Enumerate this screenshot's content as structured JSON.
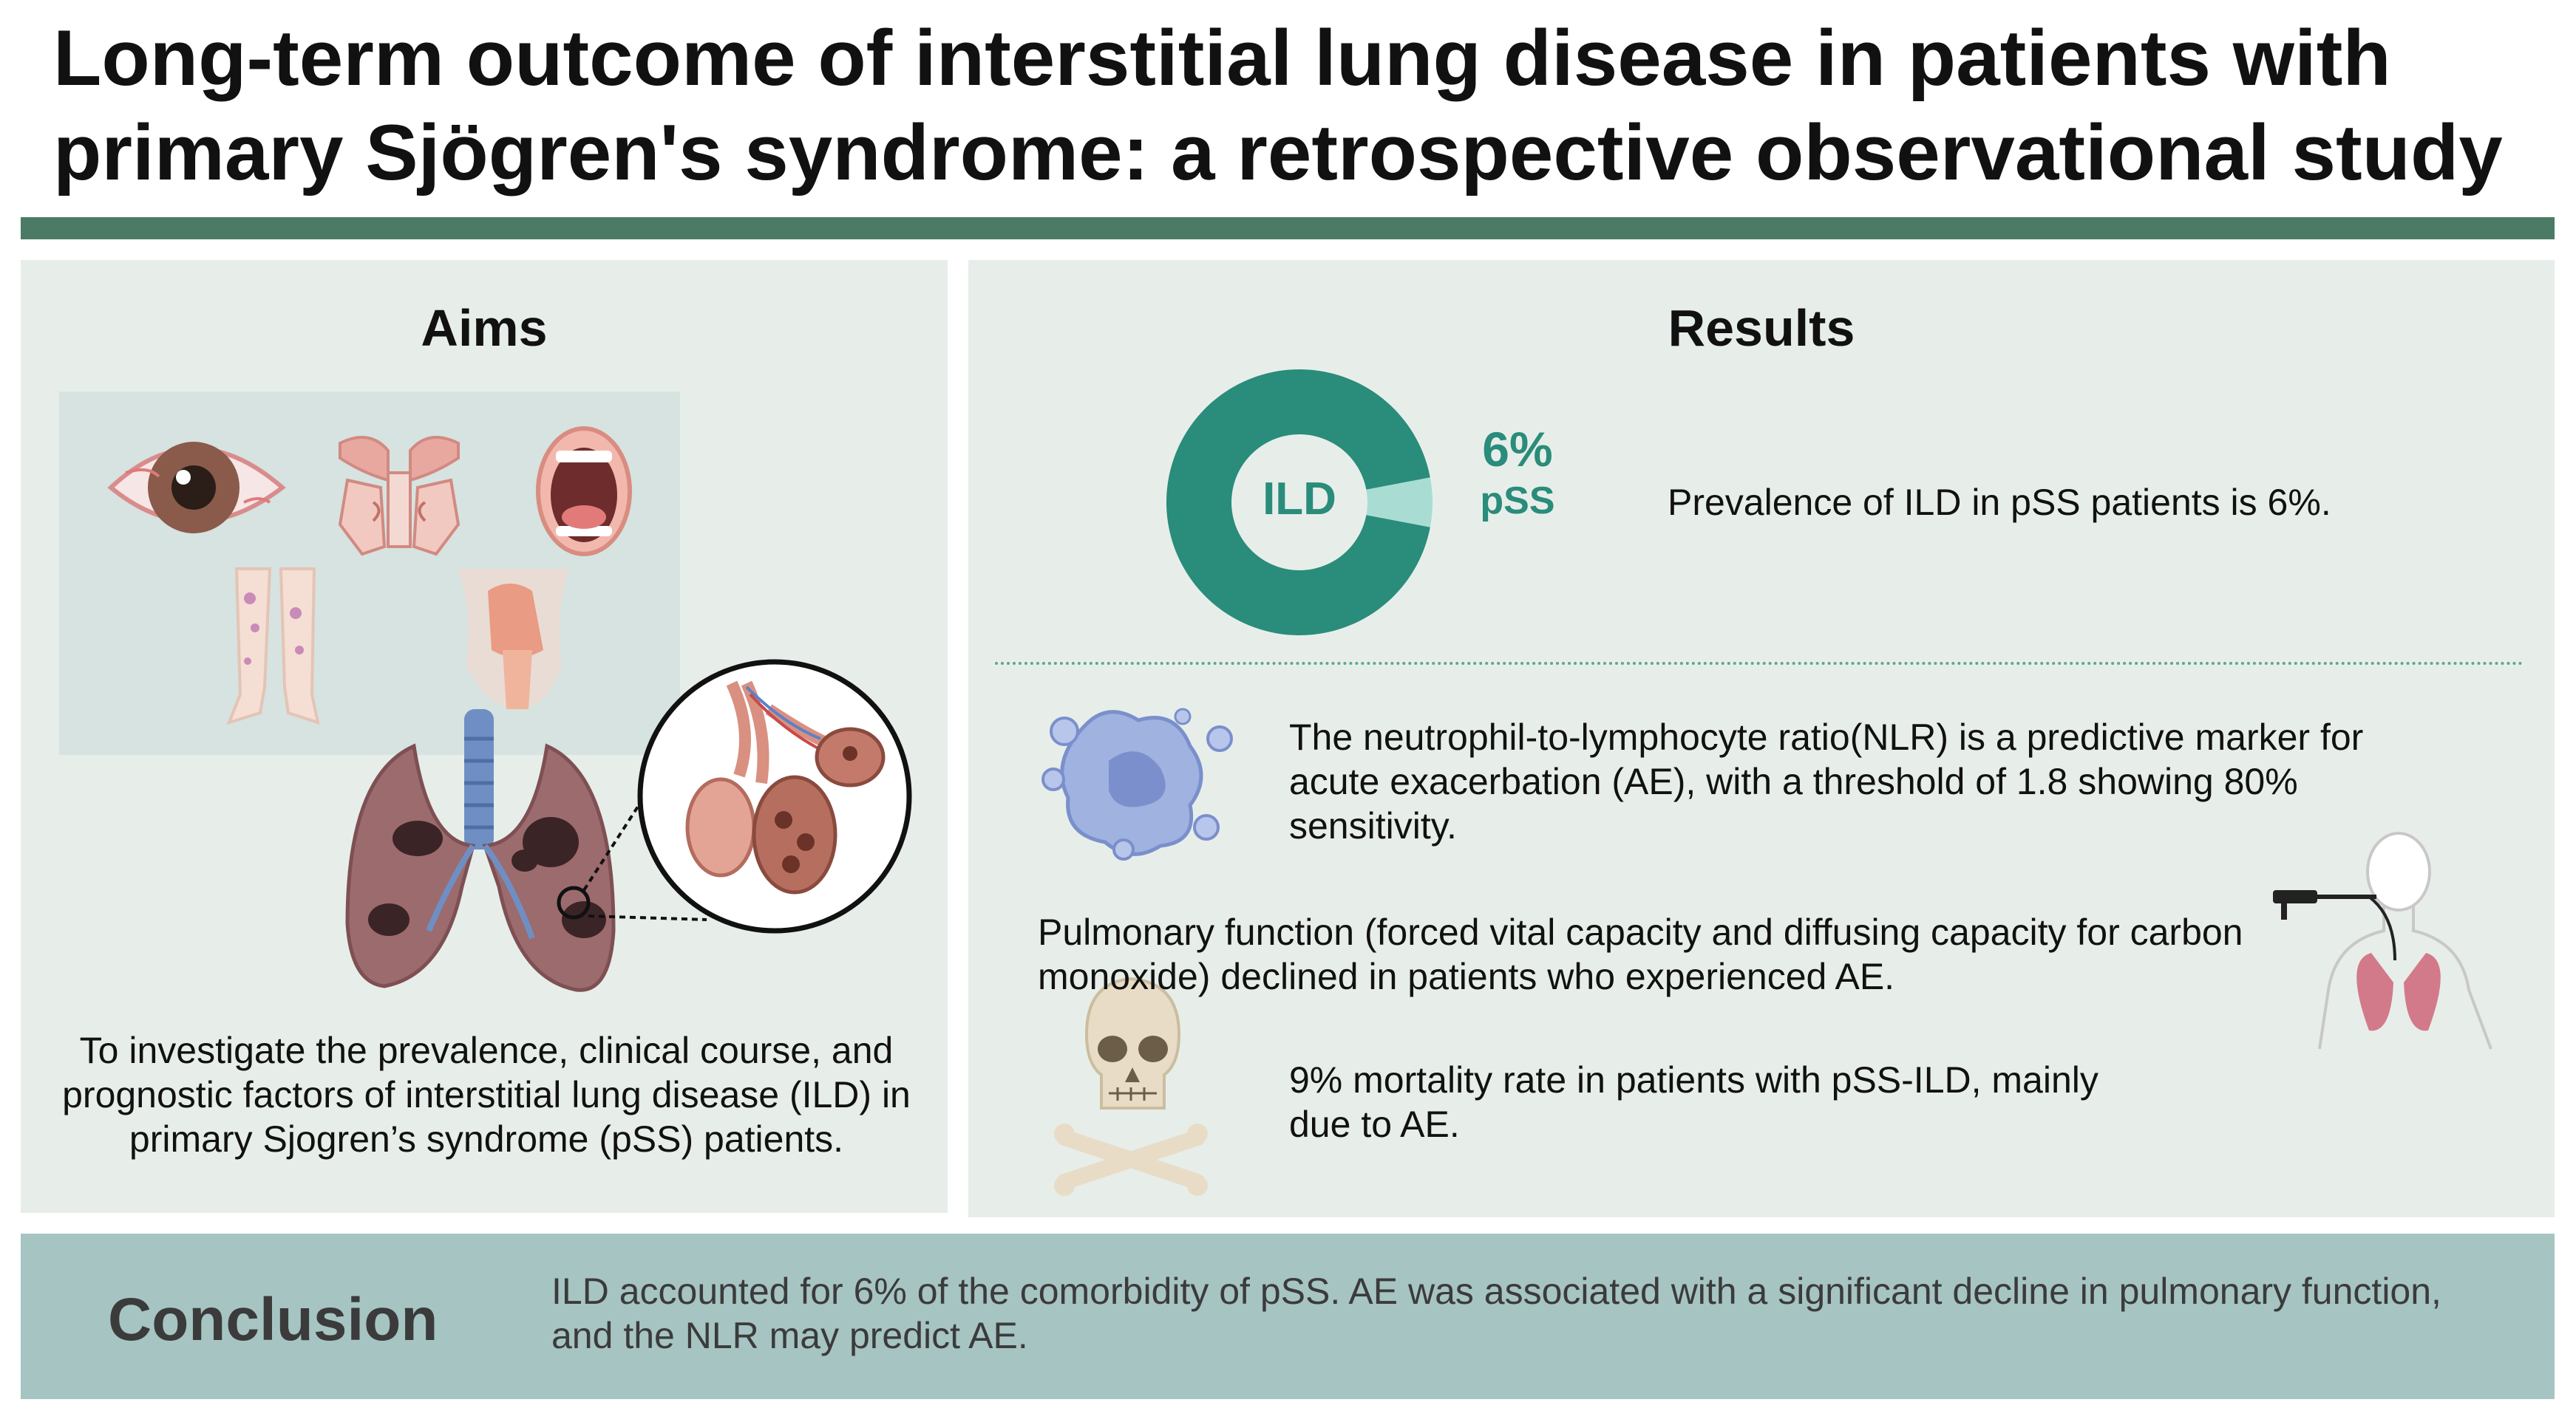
{
  "title": "Long-term outcome of interstitial lung disease in patients with primary Sjögren's syndrome: a retrospective observational study",
  "aims": {
    "heading": "Aims",
    "text": "To investigate the prevalence, clinical course, and prognostic factors of interstitial lung disease (ILD) in primary Sjogren’s syndrome (pSS) patients."
  },
  "results": {
    "heading": "Results",
    "donut": {
      "center_label": "ILD",
      "percent_label": "6%",
      "sub_label": "pSS",
      "fraction": 0.06
    },
    "prevalence_text": "Prevalence of ILD in pSS patients is 6%.",
    "nlr_text": "The neutrophil-to-lymphocyte ratio(NLR) is a predictive marker for acute exacerbation (AE), with a threshold of 1.8 showing 80% sensitivity.",
    "pulmonary_text": "Pulmonary function (forced vital capacity and diffusing capacity for carbon monoxide) declined in patients who experienced AE.",
    "mortality_text": "9% mortality rate in patients with pSS-ILD, mainly due to AE."
  },
  "conclusion": {
    "label": "Conclusion",
    "text": "ILD accounted for 6% of the comorbidity of pSS. AE was associated with a significant decline in pulmonary function, and the NLR may predict AE."
  },
  "colors": {
    "accent": "#4b7b65",
    "panel_bg": "#e7eee9",
    "donut": "#2a8c7a",
    "donut_light": "#a9ddd3",
    "conclusion_bg": "#a6c4c2"
  },
  "icons": [
    "eye-icon",
    "nasal-sinus-icon",
    "mouth-icon",
    "legs-icon",
    "throat-icon",
    "lungs-icon",
    "alveoli-icon",
    "neutrophil-cell-icon",
    "spirometry-person-icon",
    "skull-crossbones-icon"
  ]
}
